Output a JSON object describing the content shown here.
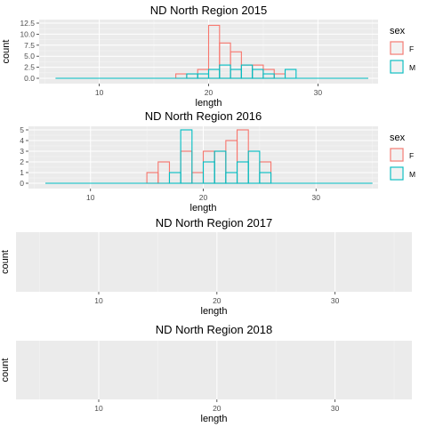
{
  "chart_data": [
    {
      "type": "bar",
      "title": "ND North Region 2015",
      "xlabel": "length",
      "ylabel": "count",
      "xlim": [
        4.5,
        35.5
      ],
      "ylim": [
        0,
        12.5
      ],
      "xticks": [
        10,
        20,
        30
      ],
      "yticks": [
        0.0,
        2.5,
        5.0,
        7.5,
        10.0,
        12.5
      ],
      "ytick_labels": [
        "0.0",
        "2.5",
        "5.0",
        "7.5",
        "10.0",
        "12.5"
      ],
      "legend": {
        "title": "sex",
        "position": "right",
        "labels": [
          "F",
          "M"
        ]
      },
      "bin_edges": [
        6.0,
        7.0,
        8.0,
        9.0,
        10.0,
        11.0,
        12.0,
        13.0,
        14.0,
        15.0,
        16.0,
        17.0,
        18.0,
        19.0,
        20.0,
        21.0,
        22.0,
        23.0,
        24.0,
        25.0,
        26.0,
        27.0,
        28.0,
        29.0,
        30.0,
        31.0,
        32.0,
        33.0,
        34.0,
        34.6
      ],
      "series": [
        {
          "name": "F",
          "values": [
            0,
            0,
            0,
            0,
            0,
            0,
            0,
            0,
            0,
            0,
            0,
            1,
            1,
            2,
            12,
            8,
            6,
            3,
            3,
            2,
            1,
            0,
            0,
            0,
            0,
            0,
            0,
            0,
            0
          ]
        },
        {
          "name": "M",
          "values": [
            0,
            0,
            0,
            0,
            0,
            0,
            0,
            0,
            0,
            0,
            0,
            0,
            1,
            1,
            2,
            3,
            2,
            3,
            2,
            1,
            0,
            2,
            0,
            0,
            0,
            0,
            0,
            0,
            0
          ]
        }
      ]
    },
    {
      "type": "bar",
      "title": "ND North Region 2016",
      "xlabel": "length",
      "ylabel": "",
      "xlim": [
        4.5,
        35.5
      ],
      "ylim": [
        0,
        5
      ],
      "xticks": [
        10,
        20,
        30
      ],
      "yticks": [
        0,
        1,
        2,
        3,
        4,
        5
      ],
      "ytick_labels": [
        "0",
        "1",
        "2",
        "3",
        "4",
        "5"
      ],
      "legend": {
        "title": "sex",
        "position": "right",
        "labels": [
          "F",
          "M"
        ]
      },
      "bin_edges": [
        6.0,
        7.0,
        8.0,
        9.0,
        10.0,
        11.0,
        12.0,
        13.0,
        14.0,
        15.0,
        16.0,
        17.0,
        18.0,
        19.0,
        20.0,
        21.0,
        22.0,
        23.0,
        24.0,
        25.0,
        26.0,
        27.0,
        28.0,
        29.0,
        30.0,
        31.0,
        32.0,
        33.0,
        34.0,
        35.0
      ],
      "series": [
        {
          "name": "F",
          "values": [
            0,
            0,
            0,
            0,
            0,
            0,
            0,
            0,
            0,
            1,
            2,
            0,
            3,
            1,
            3,
            3,
            4,
            5,
            0,
            2,
            0,
            0,
            0,
            0,
            0,
            0,
            0,
            0,
            0
          ]
        },
        {
          "name": "M",
          "values": [
            0,
            0,
            0,
            0,
            0,
            0,
            0,
            0,
            0,
            0,
            0,
            1,
            5,
            0,
            2,
            3,
            1,
            2,
            3,
            1,
            0,
            0,
            0,
            0,
            0,
            0,
            0,
            0,
            0
          ]
        }
      ]
    },
    {
      "type": "bar",
      "title": "ND North Region 2017",
      "xlabel": "length",
      "ylabel": "count",
      "xlim": [
        3.0,
        36.5
      ],
      "xticks": [
        10,
        20,
        30
      ],
      "series": []
    },
    {
      "type": "bar",
      "title": "ND North Region 2018",
      "xlabel": "length",
      "ylabel": "count",
      "xlim": [
        3.0,
        36.5
      ],
      "xticks": [
        10,
        20,
        30
      ],
      "series": []
    }
  ],
  "colors": {
    "F": "#f8766d",
    "M": "#00bfc4",
    "panel": "#ebebeb",
    "grid_major": "#ffffff",
    "grid_minor": "#f5f5f5",
    "tick_text": "#4d4d4d",
    "text": "#000000"
  }
}
